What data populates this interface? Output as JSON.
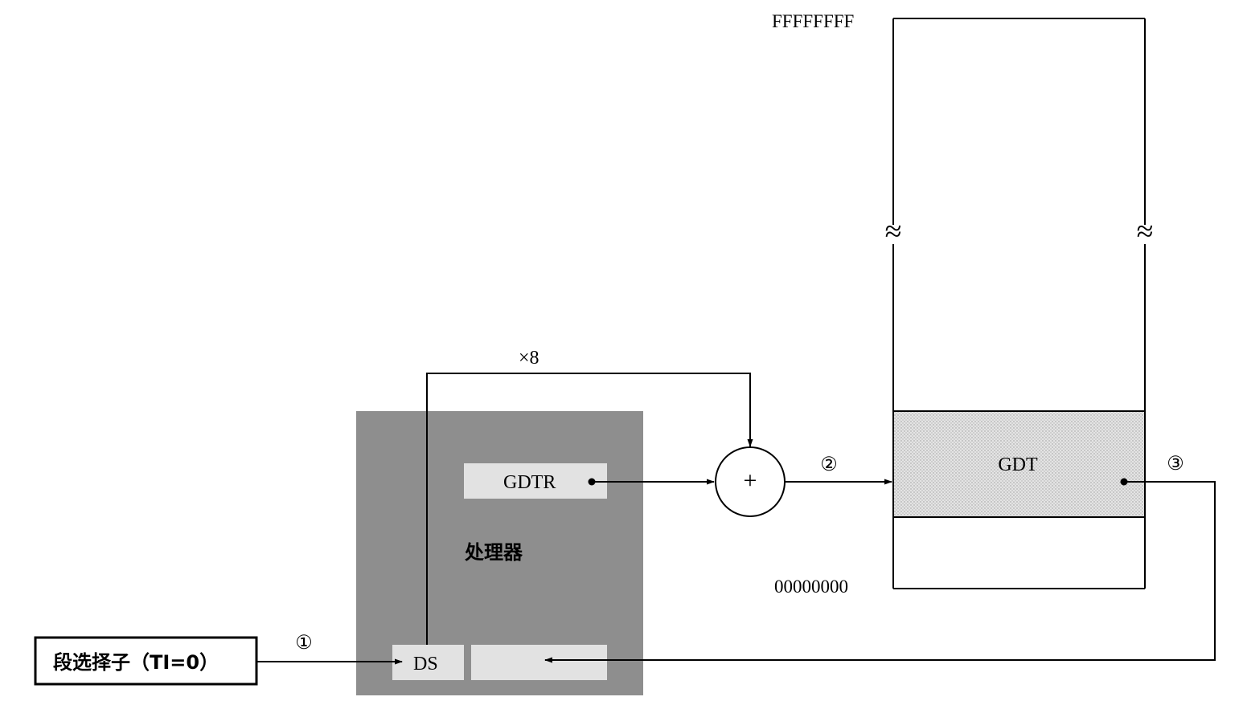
{
  "memory": {
    "top_address": "FFFFFFFF",
    "bottom_address": "00000000",
    "gdt_label": "GDT",
    "break_symbol": "≈"
  },
  "processor": {
    "label": "处理器",
    "gdtr_label": "GDTR",
    "ds_label": "DS"
  },
  "selector": {
    "label": "段选择子（TI=0）"
  },
  "adder": {
    "symbol": "+"
  },
  "multiplier_label": "×8",
  "steps": {
    "step1": "①",
    "step2": "②",
    "step3": "③"
  },
  "colors": {
    "processor_fill": "#8e8e8e",
    "register_fill": "#e2e2e2",
    "gdt_fill": "#dedede",
    "line": "#000000"
  }
}
